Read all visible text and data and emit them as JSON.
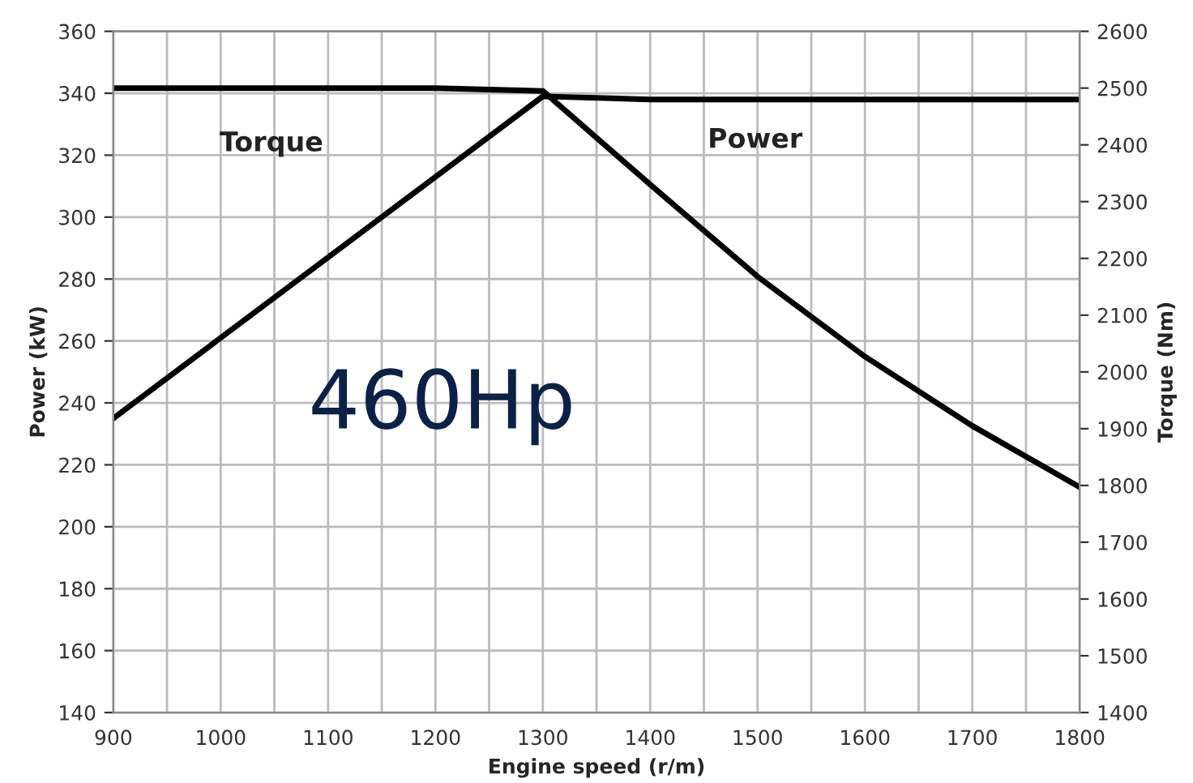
{
  "chart_data": {
    "type": "line",
    "xlabel": "Engine speed (r/m)",
    "ylabel": "Power (kW)",
    "y2label": "Torque (Nm)",
    "x": [
      900,
      1000,
      1100,
      1200,
      1300,
      1400,
      1500,
      1600,
      1700,
      1800
    ],
    "series": [
      {
        "color": "#000000",
        "values": [
          235,
          261,
          287,
          313,
          339,
          338,
          338,
          338,
          338,
          338
        ]
      },
      {
        "color": "#000000",
        "axis": "y2",
        "values": [
          2500,
          2500,
          2500,
          2500,
          2495,
          2330,
          2168,
          2027,
          1905,
          1797
        ]
      }
    ],
    "xlim": [
      900,
      1800
    ],
    "xticks": [
      900,
      {
        "value": 950,
        "label": null
      },
      1000,
      {
        "value": 1050,
        "label": null
      },
      1100,
      {
        "value": 1150,
        "label": null
      },
      1200,
      {
        "value": 1250,
        "label": null
      },
      1300,
      {
        "value": 1350,
        "label": null
      },
      1400,
      {
        "value": 1450,
        "label": null
      },
      1500,
      {
        "value": 1550,
        "label": null
      },
      1600,
      {
        "value": 1650,
        "label": null
      },
      1700,
      {
        "value": 1750,
        "label": null
      },
      1800
    ],
    "ylim": [
      140,
      360
    ],
    "yticks": [
      140,
      160,
      180,
      200,
      220,
      240,
      260,
      280,
      300,
      320,
      340,
      360
    ],
    "y2lim": [
      1400,
      2600
    ],
    "y2ticks": [
      1400,
      1500,
      1600,
      1700,
      1800,
      1900,
      2000,
      2100,
      2200,
      2300,
      2400,
      2500,
      2600
    ],
    "grid": true,
    "marker": "none",
    "line_style": "solid",
    "annotations": [
      "Torque",
      "Power",
      "460Hp"
    ]
  }
}
